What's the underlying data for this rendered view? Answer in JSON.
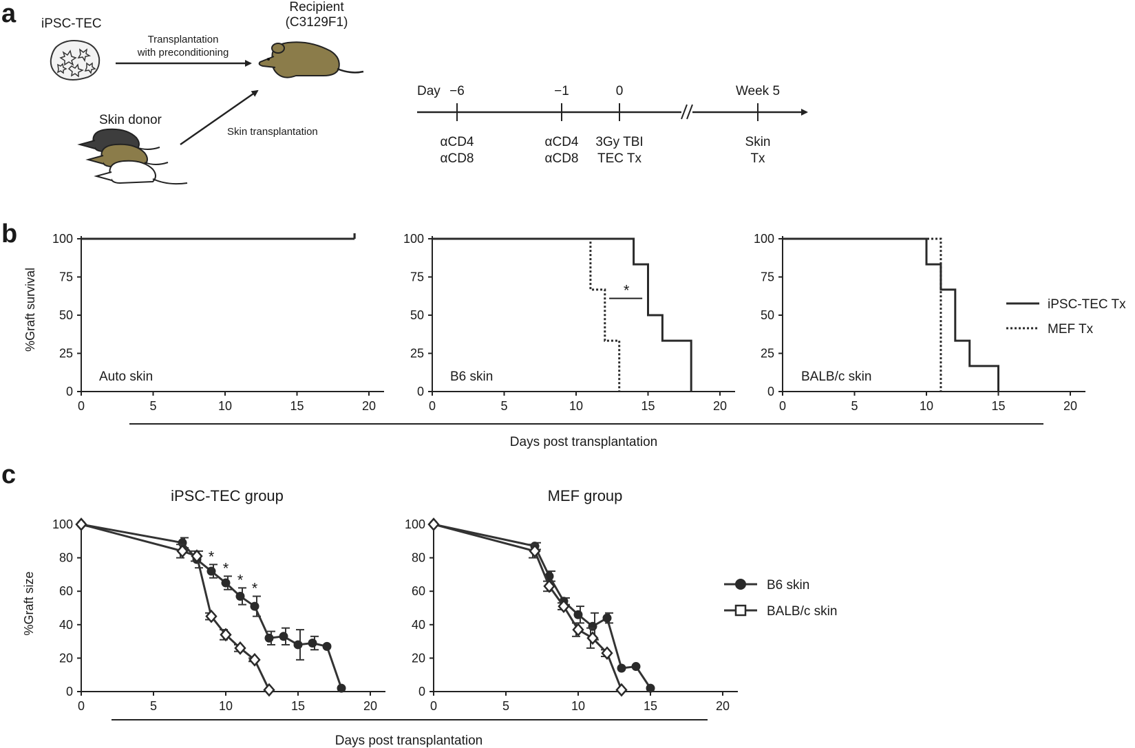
{
  "panel_labels": {
    "a": "a",
    "b": "b",
    "c": "c"
  },
  "schematic": {
    "ipsc_tec": "iPSC-TEC",
    "transplant_line1": "Transplantation",
    "transplant_line2": "with preconditioning",
    "recipient_line1": "Recipient",
    "recipient_line2": "(C3129F1)",
    "skin_donor": "Skin donor",
    "skin_transplantation": "Skin transplantation",
    "colors": {
      "dark_mouse": "#3d3d3d",
      "olive_mouse": "#8b7c4a",
      "white_mouse": "#ffffff"
    }
  },
  "timeline": {
    "day_label": "Day",
    "week_label": "Week 5",
    "points": [
      {
        "tick": "−6",
        "line1": "αCD4",
        "line2": "αCD8"
      },
      {
        "tick": "−1",
        "line1": "αCD4",
        "line2": "αCD8"
      },
      {
        "tick": "0",
        "line1": "3Gy TBI",
        "line2": "TEC Tx"
      },
      {
        "tick": "",
        "line1": "Skin",
        "line2": "Tx"
      }
    ]
  },
  "survival": {
    "ylabel": "%Graft survival",
    "xlabel": "Days post transplantation",
    "legend": {
      "solid": "iPSC-TEC Tx",
      "dotted": "MEF Tx"
    }
  },
  "size_plots": {
    "ylabel": "%Graft size",
    "xlabel": "Days post transplantation",
    "legend": {
      "filled": "B6 skin",
      "open": "BALB/c skin"
    }
  },
  "chart_data": [
    {
      "type": "line",
      "subtype": "kaplan-meier",
      "title": "Auto skin",
      "xlabel": "Days post transplantation",
      "ylabel": "%Graft survival",
      "xlim": [
        0,
        20
      ],
      "ylim": [
        0,
        100
      ],
      "xticks": [
        0,
        5,
        10,
        15,
        20
      ],
      "yticks": [
        0,
        25,
        50,
        75,
        100
      ],
      "series": [
        {
          "name": "iPSC-TEC Tx",
          "style": "solid",
          "steps": [
            [
              0,
              100
            ],
            [
              19,
              100
            ]
          ]
        },
        {
          "name": "MEF Tx",
          "style": "dotted",
          "steps": [
            [
              0,
              100
            ],
            [
              19,
              100
            ]
          ]
        }
      ]
    },
    {
      "type": "line",
      "subtype": "kaplan-meier",
      "title": "B6 skin",
      "xlabel": "Days post transplantation",
      "ylabel": "%Graft survival",
      "xlim": [
        0,
        20
      ],
      "ylim": [
        0,
        100
      ],
      "xticks": [
        0,
        5,
        10,
        15,
        20
      ],
      "yticks": [
        0,
        25,
        50,
        75,
        100
      ],
      "annotation": "*",
      "series": [
        {
          "name": "iPSC-TEC Tx",
          "style": "solid",
          "steps": [
            [
              0,
              100
            ],
            [
              14,
              83.3
            ],
            [
              15,
              50
            ],
            [
              16,
              33.3
            ],
            [
              18,
              0
            ]
          ]
        },
        {
          "name": "MEF Tx",
          "style": "dotted",
          "steps": [
            [
              0,
              100
            ],
            [
              11,
              66.7
            ],
            [
              12,
              33.3
            ],
            [
              13,
              0
            ]
          ]
        }
      ]
    },
    {
      "type": "line",
      "subtype": "kaplan-meier",
      "title": "BALB/c skin",
      "xlabel": "Days post transplantation",
      "ylabel": "%Graft survival",
      "xlim": [
        0,
        20
      ],
      "ylim": [
        0,
        100
      ],
      "xticks": [
        0,
        5,
        10,
        15,
        20
      ],
      "yticks": [
        0,
        25,
        50,
        75,
        100
      ],
      "series": [
        {
          "name": "iPSC-TEC Tx",
          "style": "solid",
          "steps": [
            [
              0,
              100
            ],
            [
              10,
              83.3
            ],
            [
              11,
              66.7
            ],
            [
              12,
              33.3
            ],
            [
              13,
              16.7
            ],
            [
              15,
              0
            ]
          ]
        },
        {
          "name": "MEF Tx",
          "style": "dotted",
          "steps": [
            [
              0,
              100
            ],
            [
              11,
              0
            ]
          ]
        }
      ]
    },
    {
      "type": "line",
      "title": "iPSC-TEC group",
      "xlabel": "Days post transplantation",
      "ylabel": "%Graft size",
      "xlim": [
        0,
        20
      ],
      "ylim": [
        0,
        100
      ],
      "xticks": [
        0,
        5,
        10,
        15,
        20
      ],
      "yticks": [
        0,
        20,
        40,
        60,
        80,
        100
      ],
      "series": [
        {
          "name": "B6 skin",
          "marker": "filled-circle",
          "x": [
            0,
            7,
            8,
            9,
            10,
            11,
            12,
            13,
            14,
            15,
            16,
            17,
            18
          ],
          "y": [
            100,
            89,
            79,
            72,
            65,
            57,
            51,
            32,
            33,
            28,
            29,
            27,
            2
          ],
          "err": [
            0,
            3,
            5,
            4,
            4,
            5,
            6,
            4,
            5,
            9,
            4,
            0,
            0
          ],
          "significance": [
            "",
            "",
            "",
            "*",
            "*",
            "*",
            "*",
            "",
            "",
            "",
            "",
            "",
            ""
          ]
        },
        {
          "name": "BALB/c skin",
          "marker": "open-diamond",
          "x": [
            0,
            7,
            8,
            9,
            10,
            11,
            12,
            13
          ],
          "y": [
            100,
            84,
            81,
            45,
            34,
            26,
            19,
            1
          ],
          "err": [
            0,
            4,
            3,
            2,
            3,
            2,
            1,
            0
          ]
        }
      ]
    },
    {
      "type": "line",
      "title": "MEF group",
      "xlabel": "Days post transplantation",
      "ylabel": "%Graft size",
      "xlim": [
        0,
        20
      ],
      "ylim": [
        0,
        100
      ],
      "xticks": [
        0,
        5,
        10,
        15,
        20
      ],
      "yticks": [
        0,
        20,
        40,
        60,
        80,
        100
      ],
      "series": [
        {
          "name": "B6 skin",
          "marker": "filled-circle",
          "x": [
            0,
            7,
            8,
            9,
            10,
            11,
            12,
            13,
            14,
            15
          ],
          "y": [
            100,
            87,
            69,
            54,
            46,
            39,
            44,
            14,
            15,
            2
          ],
          "err": [
            0,
            2,
            3,
            2,
            5,
            8,
            3,
            0,
            0,
            0
          ]
        },
        {
          "name": "BALB/c skin",
          "marker": "open-diamond",
          "x": [
            0,
            7,
            8,
            9,
            10,
            11,
            12,
            13
          ],
          "y": [
            100,
            84,
            63,
            51,
            37,
            32,
            23,
            1
          ],
          "err": [
            0,
            4,
            3,
            2,
            4,
            6,
            2,
            0
          ]
        }
      ]
    }
  ]
}
